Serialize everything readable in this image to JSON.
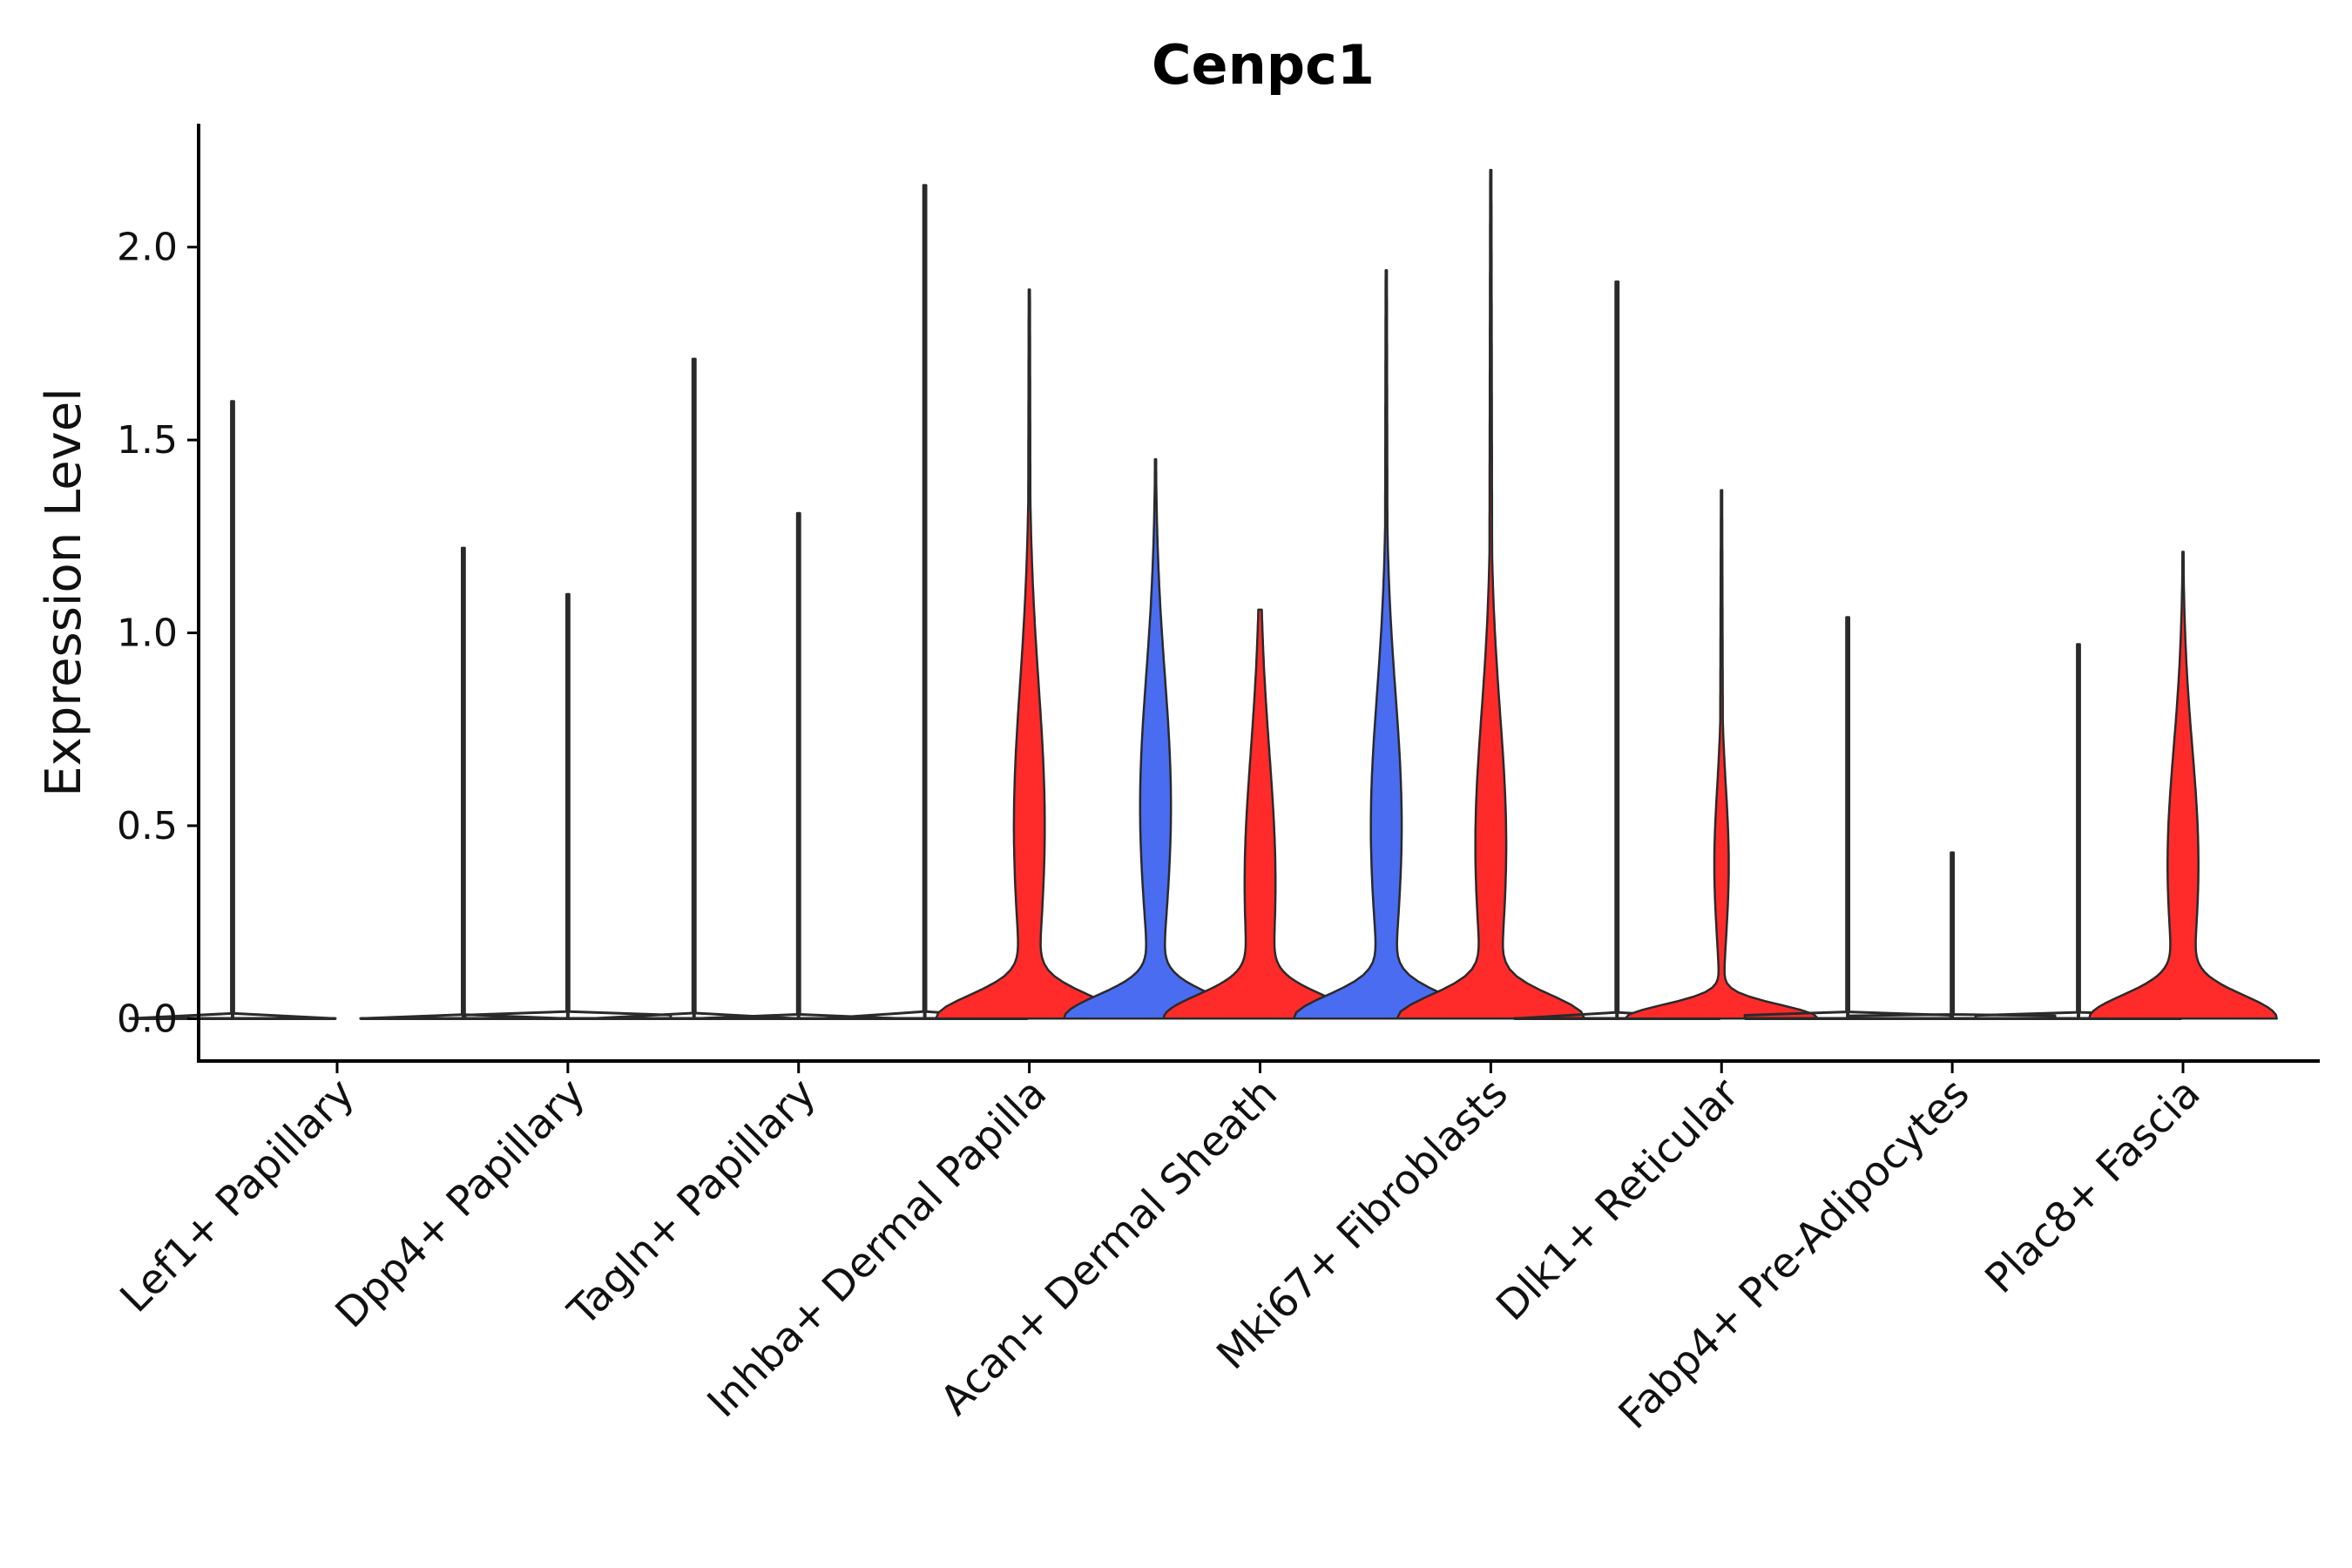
{
  "chart_data": {
    "type": "violin",
    "title": "Cenpc1",
    "xlabel": "",
    "ylabel": "Expression Level",
    "ylim": [
      -0.11,
      2.32
    ],
    "yticks": [
      0.0,
      0.5,
      1.0,
      1.5,
      2.0
    ],
    "ytick_labels": [
      "0.0",
      "0.5",
      "1.0",
      "1.5",
      "2.0"
    ],
    "colors": {
      "blue": "#4a6cf0",
      "red": "#ff2b2b",
      "outline": "#2a2a2a"
    },
    "groups": [
      {
        "name": "blue",
        "color": "#4a6cf0"
      },
      {
        "name": "red",
        "color": "#ff2b2b"
      }
    ],
    "categories": [
      "Lef1+ Papillary",
      "Dpp4+ Papillary",
      "Tagln+ Papillary",
      "Inhba+ Dermal Papilla",
      "Acan+ Dermal Sheath",
      "Mki67+ Fibroblasts",
      "Dlk1+ Reticular",
      "Fabp4+ Pre-Adipocytes",
      "Plac8+ Fascia"
    ],
    "violins": [
      {
        "category": "Lef1+ Papillary",
        "group": "blue",
        "max": 1.6,
        "shape": "flat"
      },
      {
        "category": "Dpp4+ Papillary",
        "group": "blue",
        "max": 1.22,
        "shape": "flat"
      },
      {
        "category": "Dpp4+ Papillary",
        "group": "red",
        "max": 1.1,
        "shape": "flat"
      },
      {
        "category": "Tagln+ Papillary",
        "group": "blue",
        "max": 1.71,
        "shape": "flat"
      },
      {
        "category": "Tagln+ Papillary",
        "group": "red",
        "max": 1.31,
        "shape": "flat"
      },
      {
        "category": "Inhba+ Dermal Papilla",
        "group": "blue",
        "max": 2.16,
        "shape": "flat"
      },
      {
        "category": "Inhba+ Dermal Papilla",
        "group": "red",
        "max": 1.89,
        "shape": "bimodal",
        "secondary_mode": 0.5,
        "neck": 0.22
      },
      {
        "category": "Acan+ Dermal Sheath",
        "group": "blue",
        "max": 1.45,
        "shape": "bimodal",
        "secondary_mode": 0.55,
        "neck": 0.2
      },
      {
        "category": "Acan+ Dermal Sheath",
        "group": "red",
        "max": 1.06,
        "shape": "bimodal",
        "secondary_mode": 0.35,
        "neck": 0.2
      },
      {
        "category": "Mki67+ Fibroblasts",
        "group": "blue",
        "max": 1.94,
        "shape": "bimodal",
        "secondary_mode": 0.5,
        "neck": 0.2
      },
      {
        "category": "Mki67+ Fibroblasts",
        "group": "red",
        "max": 2.2,
        "shape": "bimodal",
        "secondary_mode": 0.45,
        "neck": 0.2
      },
      {
        "category": "Dlk1+ Reticular",
        "group": "blue",
        "max": 1.91,
        "shape": "flat"
      },
      {
        "category": "Dlk1+ Reticular",
        "group": "red",
        "max": 1.37,
        "shape": "low-bump",
        "secondary_mode": 0.4,
        "neck": 0.09
      },
      {
        "category": "Fabp4+ Pre-Adipocytes",
        "group": "blue",
        "max": 1.04,
        "shape": "flat"
      },
      {
        "category": "Fabp4+ Pre-Adipocytes",
        "group": "red",
        "max": 0.43,
        "shape": "flat"
      },
      {
        "category": "Plac8+ Fascia",
        "group": "blue",
        "max": 0.97,
        "shape": "flat"
      },
      {
        "category": "Plac8+ Fascia",
        "group": "red",
        "max": 1.21,
        "shape": "bimodal",
        "secondary_mode": 0.4,
        "neck": 0.17
      }
    ]
  }
}
